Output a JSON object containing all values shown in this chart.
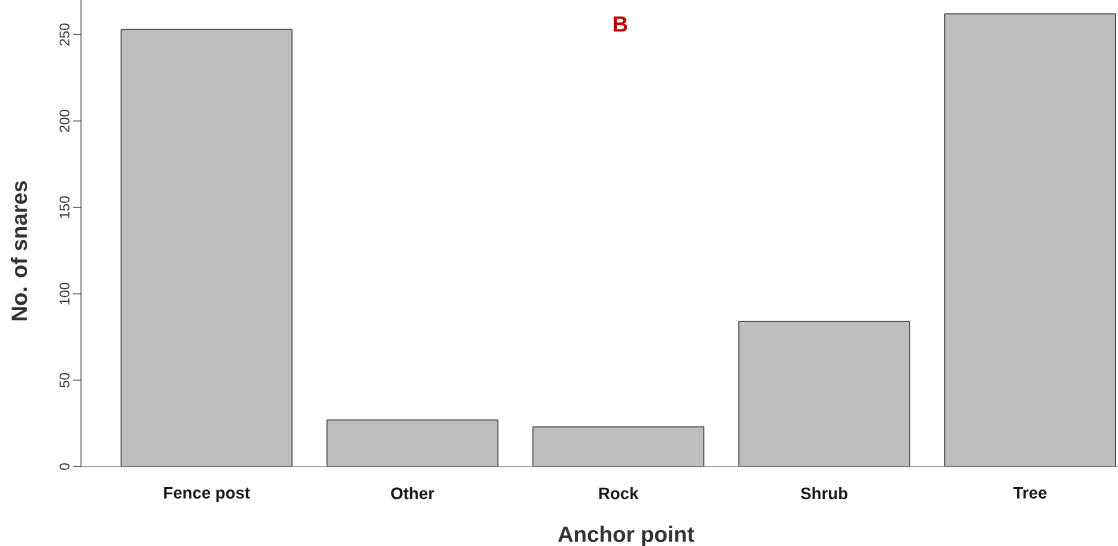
{
  "chart_data": {
    "type": "bar",
    "title": "B",
    "xlabel": "Anchor point",
    "ylabel": "No. of snares",
    "categories": [
      "Fence post",
      "Other",
      "Rock",
      "Shrub",
      "Tree"
    ],
    "values": [
      253,
      27,
      23,
      84,
      262
    ],
    "color": "#bebebe",
    "ylim": [
      0,
      270
    ],
    "yticks": [
      0,
      50,
      100,
      150,
      200,
      250
    ]
  }
}
